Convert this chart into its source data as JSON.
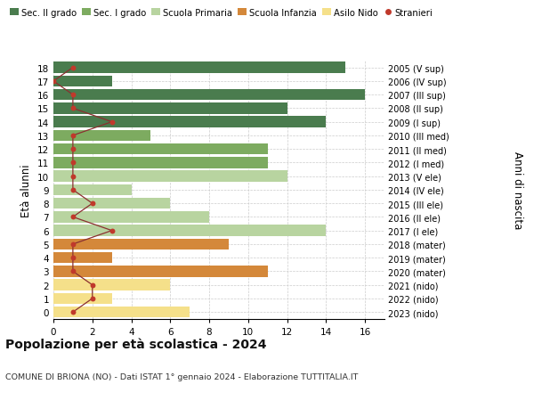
{
  "ages": [
    18,
    17,
    16,
    15,
    14,
    13,
    12,
    11,
    10,
    9,
    8,
    7,
    6,
    5,
    4,
    3,
    2,
    1,
    0
  ],
  "right_labels": [
    "2005 (V sup)",
    "2006 (IV sup)",
    "2007 (III sup)",
    "2008 (II sup)",
    "2009 (I sup)",
    "2010 (III med)",
    "2011 (II med)",
    "2012 (I med)",
    "2013 (V ele)",
    "2014 (IV ele)",
    "2015 (III ele)",
    "2016 (II ele)",
    "2017 (I ele)",
    "2018 (mater)",
    "2019 (mater)",
    "2020 (mater)",
    "2021 (nido)",
    "2022 (nido)",
    "2023 (nido)"
  ],
  "bar_values": [
    15,
    3,
    16,
    12,
    14,
    5,
    11,
    11,
    12,
    4,
    6,
    8,
    14,
    9,
    3,
    11,
    6,
    3,
    7
  ],
  "stranieri_values": [
    1,
    0,
    1,
    1,
    3,
    1,
    1,
    1,
    1,
    1,
    2,
    1,
    3,
    1,
    1,
    1,
    2,
    2,
    1
  ],
  "bar_colors": [
    "#4a7c4e",
    "#4a7c4e",
    "#4a7c4e",
    "#4a7c4e",
    "#4a7c4e",
    "#7dab60",
    "#7dab60",
    "#7dab60",
    "#b8d4a0",
    "#b8d4a0",
    "#b8d4a0",
    "#b8d4a0",
    "#b8d4a0",
    "#d4883a",
    "#d4883a",
    "#d4883a",
    "#f5e08a",
    "#f5e08a",
    "#f5e08a"
  ],
  "legend_labels": [
    "Sec. II grado",
    "Sec. I grado",
    "Scuola Primaria",
    "Scuola Infanzia",
    "Asilo Nido",
    "Stranieri"
  ],
  "legend_colors": [
    "#4a7c4e",
    "#7dab60",
    "#b8d4a0",
    "#d4883a",
    "#f5e08a",
    "#c0392b"
  ],
  "title": "Popolazione per età scolastica - 2024",
  "subtitle": "COMUNE DI BRIONA (NO) - Dati ISTAT 1° gennaio 2024 - Elaborazione TUTTITALIA.IT",
  "ylabel": "Età alunni",
  "right_ylabel": "Anni di nascita",
  "xlim": [
    0,
    17
  ],
  "xticks": [
    0,
    2,
    4,
    6,
    8,
    10,
    12,
    14,
    16
  ],
  "stranieri_color": "#c0392b",
  "line_color": "#8b3030",
  "bar_height": 0.82
}
